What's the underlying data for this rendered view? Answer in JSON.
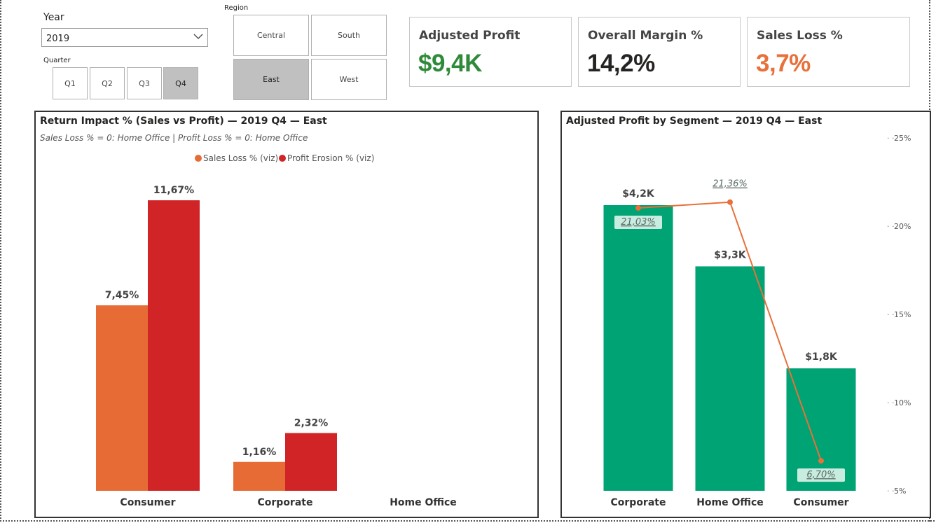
{
  "slicers": {
    "year_label": "Year",
    "year_value": "2019",
    "quarter_label": "Quarter",
    "quarters": [
      "Q1",
      "Q2",
      "Q3",
      "Q4"
    ],
    "selected_quarter": "Q4",
    "region_label": "Region",
    "regions": [
      "Central",
      "South",
      "East",
      "West"
    ],
    "selected_region": "East"
  },
  "cards": [
    {
      "title": "Adjusted Profit",
      "value": "$9,4K",
      "color": "#2f8a3a"
    },
    {
      "title": "Overall Margin %",
      "value": "14,2%",
      "color": "#252423"
    },
    {
      "title": "Sales Loss %",
      "value": "3,7%",
      "color": "#e8703a"
    }
  ],
  "colors": {
    "sales_loss": "#e66b35",
    "profit_erosion": "#d02426",
    "segment_bar": "#00a373",
    "margin_line": "#e8703a"
  },
  "chart_data": [
    {
      "type": "bar",
      "title": "Return Impact % (Sales vs Profit) — 2019 Q4 — East",
      "subtitle": "Sales Loss % = 0: Home Office  |  Profit Loss % = 0: Home Office",
      "categories": [
        "Consumer",
        "Corporate",
        "Home Office"
      ],
      "series": [
        {
          "name": "Sales Loss % (viz)",
          "values": [
            7.45,
            1.16,
            null
          ],
          "labels": [
            "7,45%",
            "1,16%",
            ""
          ]
        },
        {
          "name": "Profit Erosion % (viz)",
          "values": [
            11.67,
            2.32,
            null
          ],
          "labels": [
            "11,67%",
            "2,32%",
            ""
          ]
        }
      ],
      "legend": "top-center",
      "ylim": [
        0,
        12.6
      ]
    },
    {
      "type": "bar",
      "title": "Adjusted Profit by Segment — 2019 Q4 — East",
      "categories": [
        "Corporate",
        "Home Office",
        "Consumer"
      ],
      "bars": {
        "values": [
          4.2,
          3.3,
          1.8
        ],
        "labels": [
          "$4,2K",
          "$3,3K",
          "$1,8K"
        ],
        "ylim": [
          0,
          4.9
        ]
      },
      "line": {
        "values": [
          21.03,
          21.36,
          6.7
        ],
        "labels": [
          "21,03%",
          "21,36%",
          "6,70%"
        ]
      },
      "right_axis": {
        "min": 5,
        "max": 25,
        "ticks": [
          25,
          20,
          15,
          10,
          5
        ],
        "tick_labels": [
          "25%",
          "20%",
          "15%",
          "10%",
          "5%"
        ]
      }
    }
  ]
}
